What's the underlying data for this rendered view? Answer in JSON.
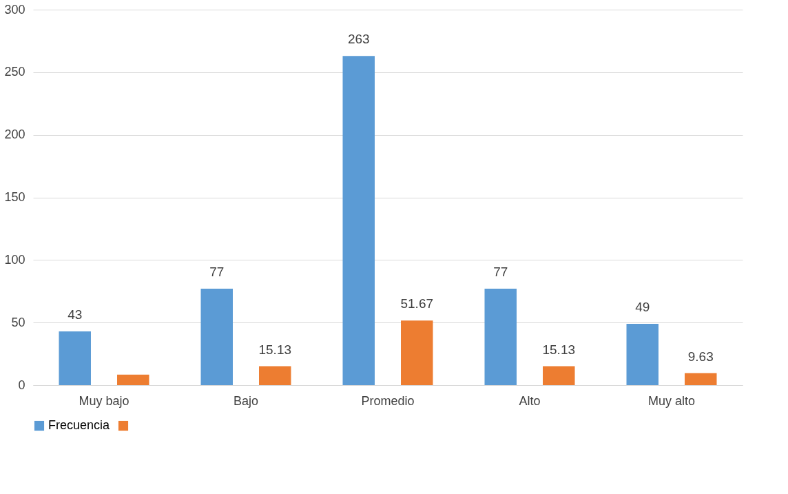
{
  "chart_data": {
    "type": "bar",
    "categories": [
      "Muy bajo",
      "Bajo",
      "Promedio",
      "Alto",
      "Muy alto"
    ],
    "series": [
      {
        "name": "Frecuencia",
        "color": "#5b9bd5",
        "values": [
          43,
          77,
          263,
          77,
          49
        ],
        "value_labels": [
          "43",
          "77",
          "263",
          "77",
          "49"
        ]
      },
      {
        "color": "#ed7d31",
        "values": [
          8.4,
          15.13,
          51.67,
          15.13,
          9.63
        ],
        "value_labels": [
          null,
          "15.13",
          "51.67",
          "15.13",
          "9.63"
        ]
      }
    ],
    "ylim": [
      0,
      300
    ],
    "yticks": [
      0,
      50,
      100,
      150,
      200,
      250,
      300
    ],
    "grid": "y",
    "legend": "bottom"
  }
}
